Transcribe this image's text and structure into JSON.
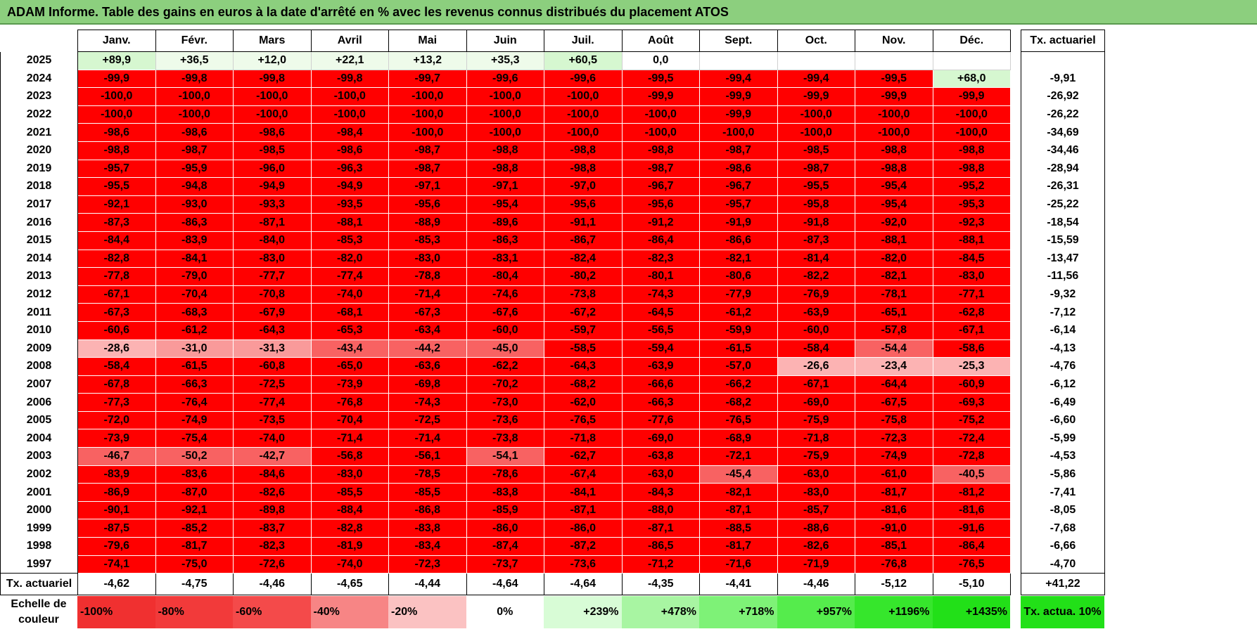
{
  "title": "ADAM Informe. Table des gains en euros à la date d'arrêté en % avec les revenus connus distribués du placement ATOS",
  "months": [
    "Janv.",
    "Févr.",
    "Mars",
    "Avril",
    "Mai",
    "Juin",
    "Juil.",
    "Août",
    "Sept.",
    "Oct.",
    "Nov.",
    "Déc."
  ],
  "tx_header": "Tx. actuariel",
  "rows": [
    {
      "year": "2025",
      "values": [
        "+89,9",
        "+36,5",
        "+12,0",
        "+22,1",
        "+13,2",
        "+35,3",
        "+60,5",
        "0,0",
        "",
        "",
        "",
        ""
      ],
      "tx": ""
    },
    {
      "year": "2024",
      "values": [
        "-99,9",
        "-99,8",
        "-99,8",
        "-99,8",
        "-99,7",
        "-99,6",
        "-99,6",
        "-99,5",
        "-99,4",
        "-99,4",
        "-99,5",
        "+68,0"
      ],
      "tx": "-9,91"
    },
    {
      "year": "2023",
      "values": [
        "-100,0",
        "-100,0",
        "-100,0",
        "-100,0",
        "-100,0",
        "-100,0",
        "-100,0",
        "-99,9",
        "-99,9",
        "-99,9",
        "-99,9",
        "-99,9"
      ],
      "tx": "-26,92"
    },
    {
      "year": "2022",
      "values": [
        "-100,0",
        "-100,0",
        "-100,0",
        "-100,0",
        "-100,0",
        "-100,0",
        "-100,0",
        "-100,0",
        "-99,9",
        "-100,0",
        "-100,0",
        "-100,0"
      ],
      "tx": "-26,22"
    },
    {
      "year": "2021",
      "values": [
        "-98,6",
        "-98,6",
        "-98,6",
        "-98,4",
        "-100,0",
        "-100,0",
        "-100,0",
        "-100,0",
        "-100,0",
        "-100,0",
        "-100,0",
        "-100,0"
      ],
      "tx": "-34,69"
    },
    {
      "year": "2020",
      "values": [
        "-98,8",
        "-98,7",
        "-98,5",
        "-98,6",
        "-98,7",
        "-98,8",
        "-98,8",
        "-98,8",
        "-98,7",
        "-98,5",
        "-98,8",
        "-98,8"
      ],
      "tx": "-34,46"
    },
    {
      "year": "2019",
      "values": [
        "-95,7",
        "-95,9",
        "-96,0",
        "-96,3",
        "-98,7",
        "-98,8",
        "-98,8",
        "-98,7",
        "-98,6",
        "-98,7",
        "-98,8",
        "-98,8"
      ],
      "tx": "-28,94"
    },
    {
      "year": "2018",
      "values": [
        "-95,5",
        "-94,8",
        "-94,9",
        "-94,9",
        "-97,1",
        "-97,1",
        "-97,0",
        "-96,7",
        "-96,7",
        "-95,5",
        "-95,4",
        "-95,2"
      ],
      "tx": "-26,31"
    },
    {
      "year": "2017",
      "values": [
        "-92,1",
        "-93,0",
        "-93,3",
        "-93,5",
        "-95,6",
        "-95,4",
        "-95,6",
        "-95,6",
        "-95,7",
        "-95,8",
        "-95,4",
        "-95,3"
      ],
      "tx": "-25,22"
    },
    {
      "year": "2016",
      "values": [
        "-87,3",
        "-86,3",
        "-87,1",
        "-88,1",
        "-88,9",
        "-89,6",
        "-91,1",
        "-91,2",
        "-91,9",
        "-91,8",
        "-92,0",
        "-92,3"
      ],
      "tx": "-18,54"
    },
    {
      "year": "2015",
      "values": [
        "-84,4",
        "-83,9",
        "-84,0",
        "-85,3",
        "-85,3",
        "-86,3",
        "-86,7",
        "-86,4",
        "-86,6",
        "-87,3",
        "-88,1",
        "-88,1"
      ],
      "tx": "-15,59"
    },
    {
      "year": "2014",
      "values": [
        "-82,8",
        "-84,1",
        "-83,0",
        "-82,0",
        "-83,0",
        "-83,1",
        "-82,4",
        "-82,3",
        "-82,1",
        "-81,4",
        "-82,0",
        "-84,5"
      ],
      "tx": "-13,47"
    },
    {
      "year": "2013",
      "values": [
        "-77,8",
        "-79,0",
        "-77,7",
        "-77,4",
        "-78,8",
        "-80,4",
        "-80,2",
        "-80,1",
        "-80,6",
        "-82,2",
        "-82,1",
        "-83,0"
      ],
      "tx": "-11,56"
    },
    {
      "year": "2012",
      "values": [
        "-67,1",
        "-70,4",
        "-70,8",
        "-74,0",
        "-71,4",
        "-74,6",
        "-73,8",
        "-74,3",
        "-77,9",
        "-76,9",
        "-78,1",
        "-77,1"
      ],
      "tx": "-9,32"
    },
    {
      "year": "2011",
      "values": [
        "-67,3",
        "-68,3",
        "-67,9",
        "-68,1",
        "-67,3",
        "-67,6",
        "-67,2",
        "-64,5",
        "-61,2",
        "-63,9",
        "-65,1",
        "-62,8"
      ],
      "tx": "-7,12"
    },
    {
      "year": "2010",
      "values": [
        "-60,6",
        "-61,2",
        "-64,3",
        "-65,3",
        "-63,4",
        "-60,0",
        "-59,7",
        "-56,5",
        "-59,9",
        "-60,0",
        "-57,8",
        "-67,1"
      ],
      "tx": "-6,14"
    },
    {
      "year": "2009",
      "values": [
        "-28,6",
        "-31,0",
        "-31,3",
        "-43,4",
        "-44,2",
        "-45,0",
        "-58,5",
        "-59,4",
        "-61,5",
        "-58,4",
        "-54,4",
        "-58,6"
      ],
      "tx": "-4,13"
    },
    {
      "year": "2008",
      "values": [
        "-58,4",
        "-61,5",
        "-60,8",
        "-65,0",
        "-63,6",
        "-62,2",
        "-64,3",
        "-63,9",
        "-57,0",
        "-26,6",
        "-23,4",
        "-25,3"
      ],
      "tx": "-4,76"
    },
    {
      "year": "2007",
      "values": [
        "-67,8",
        "-66,3",
        "-72,5",
        "-73,9",
        "-69,8",
        "-70,2",
        "-68,2",
        "-66,6",
        "-66,2",
        "-67,1",
        "-64,4",
        "-60,9"
      ],
      "tx": "-6,12"
    },
    {
      "year": "2006",
      "values": [
        "-77,3",
        "-76,4",
        "-77,4",
        "-76,8",
        "-74,3",
        "-73,0",
        "-62,0",
        "-66,3",
        "-68,2",
        "-69,0",
        "-67,5",
        "-69,3"
      ],
      "tx": "-6,49"
    },
    {
      "year": "2005",
      "values": [
        "-72,0",
        "-74,9",
        "-73,5",
        "-70,4",
        "-72,5",
        "-73,6",
        "-76,5",
        "-77,6",
        "-76,5",
        "-75,9",
        "-75,8",
        "-75,2"
      ],
      "tx": "-6,60"
    },
    {
      "year": "2004",
      "values": [
        "-73,9",
        "-75,4",
        "-74,0",
        "-71,4",
        "-71,4",
        "-73,8",
        "-71,8",
        "-69,0",
        "-68,9",
        "-71,8",
        "-72,3",
        "-72,4"
      ],
      "tx": "-5,99"
    },
    {
      "year": "2003",
      "values": [
        "-46,7",
        "-50,2",
        "-42,7",
        "-56,8",
        "-56,1",
        "-54,1",
        "-62,7",
        "-63,8",
        "-72,1",
        "-75,9",
        "-74,9",
        "-72,8"
      ],
      "tx": "-4,53"
    },
    {
      "year": "2002",
      "values": [
        "-83,9",
        "-83,6",
        "-84,6",
        "-83,0",
        "-78,5",
        "-78,6",
        "-67,4",
        "-63,0",
        "-45,4",
        "-63,0",
        "-61,0",
        "-40,5"
      ],
      "tx": "-5,86"
    },
    {
      "year": "2001",
      "values": [
        "-86,9",
        "-87,0",
        "-82,6",
        "-85,5",
        "-85,5",
        "-83,8",
        "-84,1",
        "-84,3",
        "-82,1",
        "-83,0",
        "-81,7",
        "-81,2"
      ],
      "tx": "-7,41"
    },
    {
      "year": "2000",
      "values": [
        "-90,1",
        "-92,1",
        "-89,8",
        "-88,4",
        "-86,8",
        "-85,9",
        "-87,1",
        "-88,0",
        "-87,1",
        "-85,7",
        "-81,6",
        "-81,6"
      ],
      "tx": "-8,05"
    },
    {
      "year": "1999",
      "values": [
        "-87,5",
        "-85,2",
        "-83,7",
        "-82,8",
        "-83,8",
        "-86,0",
        "-86,0",
        "-87,1",
        "-88,5",
        "-88,6",
        "-91,0",
        "-91,6"
      ],
      "tx": "-7,68"
    },
    {
      "year": "1998",
      "values": [
        "-79,6",
        "-81,7",
        "-82,3",
        "-81,9",
        "-83,4",
        "-87,4",
        "-87,2",
        "-86,5",
        "-81,7",
        "-82,6",
        "-85,1",
        "-86,4"
      ],
      "tx": "-6,66"
    },
    {
      "year": "1997",
      "values": [
        "-74,1",
        "-75,0",
        "-72,6",
        "-74,0",
        "-72,3",
        "-73,7",
        "-73,6",
        "-71,2",
        "-71,6",
        "-71,9",
        "-76,8",
        "-76,5"
      ],
      "tx": "-4,70"
    }
  ],
  "footer": {
    "label": "Tx. actuariel",
    "values": [
      "-4,62",
      "-4,75",
      "-4,46",
      "-4,65",
      "-4,44",
      "-4,64",
      "-4,64",
      "-4,35",
      "-4,41",
      "-4,46",
      "-5,12",
      "-5,10"
    ],
    "tx": "+41,22"
  },
  "scale": {
    "label": "Echelle de couleur",
    "items": [
      {
        "text": "-100%",
        "color": "#f03030",
        "kind": "neg"
      },
      {
        "text": "-80%",
        "color": "#f23a3a",
        "kind": "neg"
      },
      {
        "text": "-60%",
        "color": "#f44a4a",
        "kind": "neg"
      },
      {
        "text": "-40%",
        "color": "#f78585",
        "kind": "neg"
      },
      {
        "text": "-20%",
        "color": "#fbc2c2",
        "kind": "neg"
      },
      {
        "text": "0%",
        "color": "#ffffff",
        "kind": "zero"
      },
      {
        "text": "+239%",
        "color": "#d8fcd6",
        "kind": "pos"
      },
      {
        "text": "+478%",
        "color": "#a8f5a2",
        "kind": "pos"
      },
      {
        "text": "+718%",
        "color": "#7ef277",
        "kind": "pos"
      },
      {
        "text": "+957%",
        "color": "#55ec4c",
        "kind": "pos"
      },
      {
        "text": "+1196%",
        "color": "#36e62c",
        "kind": "pos"
      },
      {
        "text": "+1435%",
        "color": "#22e018",
        "kind": "pos"
      }
    ],
    "tx_label": "Tx. actua. 10%",
    "tx_color": "#22e018"
  }
}
